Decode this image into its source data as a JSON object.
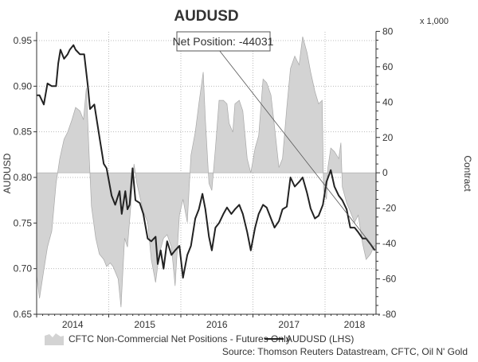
{
  "chart_data": {
    "type": "area+line",
    "title": "AUDUSD",
    "ylabel_left": "AUDUSD",
    "ylabel_right": "Contract",
    "right_axis_unit": "x 1,000",
    "ylim_left": [
      0.65,
      0.95
    ],
    "ylim_right": [
      -80,
      80
    ],
    "xlim": [
      2014.0,
      2018.71
    ],
    "left_ticks": [
      "0.65",
      "0.70",
      "0.75",
      "0.80",
      "0.85",
      "0.90",
      "0.95"
    ],
    "right_ticks": [
      "-80",
      "-60",
      "-40",
      "-20",
      "0",
      "20",
      "40",
      "60",
      "80"
    ],
    "x_ticks": [
      "2014",
      "2015",
      "2016",
      "2017",
      "2018"
    ],
    "grid": true,
    "annotation": "Net Position: -44031",
    "legend": {
      "placement": "bottom",
      "items": [
        "CFTC Non-Commercial Net Positions - Futures Only",
        "AUDUSD (LHS)"
      ]
    },
    "source": "Source: Thomson Reuters Datastream, CFTC, Oil N' Gold",
    "colors": {
      "area": "#d3d3d3",
      "area_stroke": "#a8a8a8",
      "line": "#222222"
    },
    "series": [
      {
        "name": "CFTC Non-Commercial Net Positions - Futures Only",
        "axis": "right",
        "type": "area",
        "x": [
          2014.0,
          2014.04,
          2014.1,
          2014.15,
          2014.21,
          2014.27,
          2014.32,
          2014.38,
          2014.43,
          2014.49,
          2014.54,
          2014.6,
          2014.65,
          2014.69,
          2014.73,
          2014.76,
          2014.82,
          2014.87,
          2014.93,
          2014.97,
          2015.02,
          2015.06,
          2015.13,
          2015.17,
          2015.22,
          2015.26,
          2015.3,
          2015.35,
          2015.39,
          2015.44,
          2015.48,
          2015.54,
          2015.59,
          2015.65,
          2015.7,
          2015.76,
          2015.81,
          2015.87,
          2015.92,
          2015.98,
          2016.03,
          2016.09,
          2016.14,
          2016.2,
          2016.25,
          2016.31,
          2016.34,
          2016.39,
          2016.43,
          2016.48,
          2016.53,
          2016.59,
          2016.64,
          2016.67,
          2016.72,
          2016.75,
          2016.81,
          2016.86,
          2016.92,
          2016.97,
          2017.03,
          2017.08,
          2017.14,
          2017.19,
          2017.25,
          2017.3,
          2017.36,
          2017.41,
          2017.47,
          2017.52,
          2017.58,
          2017.64,
          2017.69,
          2017.75,
          2017.8,
          2017.86,
          2017.91,
          2017.96,
          2017.98,
          2018.02,
          2018.04,
          2018.08,
          2018.13,
          2018.19,
          2018.22,
          2018.24,
          2018.3,
          2018.35,
          2018.41,
          2018.46,
          2018.52,
          2018.57,
          2018.63,
          2018.69,
          2018.71
        ],
        "values": [
          -58,
          -71,
          -55,
          -42,
          -33,
          -6,
          8,
          19,
          23,
          30,
          37,
          35,
          30,
          48,
          8,
          -19,
          -37,
          -46,
          -49,
          -53,
          -51,
          -53,
          -60,
          -76,
          -37,
          -42,
          -22,
          5,
          -6,
          -15,
          -22,
          -28,
          -49,
          -62,
          -46,
          -37,
          -35,
          -42,
          -64,
          -24,
          -15,
          -28,
          10,
          23,
          39,
          57,
          30,
          -6,
          -10,
          14,
          41,
          41,
          39,
          28,
          23,
          39,
          41,
          35,
          8,
          0,
          14,
          21,
          53,
          51,
          44,
          26,
          3,
          8,
          37,
          59,
          66,
          61,
          77,
          68,
          57,
          46,
          39,
          41,
          -10,
          -15,
          3,
          14,
          12,
          8,
          17,
          -8,
          -17,
          -22,
          -28,
          -24,
          -40,
          -49,
          -46,
          -41,
          -44
        ]
      },
      {
        "name": "AUDUSD (LHS)",
        "axis": "left",
        "type": "line",
        "x": [
          2014.0,
          2014.04,
          2014.1,
          2014.15,
          2014.21,
          2014.27,
          2014.3,
          2014.33,
          2014.38,
          2014.43,
          2014.46,
          2014.51,
          2014.54,
          2014.6,
          2014.66,
          2014.71,
          2014.74,
          2014.8,
          2014.84,
          2014.88,
          2014.93,
          2014.97,
          2015.04,
          2015.09,
          2015.15,
          2015.18,
          2015.23,
          2015.26,
          2015.29,
          2015.33,
          2015.37,
          2015.43,
          2015.48,
          2015.54,
          2015.59,
          2015.65,
          2015.68,
          2015.72,
          2015.76,
          2015.81,
          2015.87,
          2015.92,
          2015.98,
          2016.03,
          2016.09,
          2016.14,
          2016.2,
          2016.25,
          2016.3,
          2016.34,
          2016.39,
          2016.43,
          2016.48,
          2016.53,
          2016.59,
          2016.64,
          2016.7,
          2016.75,
          2016.81,
          2016.86,
          2016.92,
          2016.97,
          2017.03,
          2017.08,
          2017.14,
          2017.19,
          2017.25,
          2017.3,
          2017.36,
          2017.41,
          2017.47,
          2017.52,
          2017.58,
          2017.64,
          2017.69,
          2017.75,
          2017.8,
          2017.86,
          2017.91,
          2017.97,
          2018.02,
          2018.08,
          2018.13,
          2018.19,
          2018.24,
          2018.3,
          2018.35,
          2018.41,
          2018.46,
          2018.52,
          2018.57,
          2018.63,
          2018.69
        ],
        "values": [
          0.89,
          0.89,
          0.88,
          0.903,
          0.9,
          0.9,
          0.925,
          0.94,
          0.93,
          0.935,
          0.94,
          0.945,
          0.94,
          0.935,
          0.935,
          0.9,
          0.875,
          0.88,
          0.86,
          0.84,
          0.815,
          0.81,
          0.78,
          0.77,
          0.785,
          0.76,
          0.785,
          0.765,
          0.77,
          0.81,
          0.775,
          0.772,
          0.76,
          0.733,
          0.73,
          0.735,
          0.705,
          0.72,
          0.7,
          0.73,
          0.715,
          0.72,
          0.725,
          0.69,
          0.715,
          0.725,
          0.755,
          0.765,
          0.782,
          0.765,
          0.735,
          0.72,
          0.745,
          0.75,
          0.76,
          0.767,
          0.76,
          0.765,
          0.77,
          0.76,
          0.74,
          0.72,
          0.745,
          0.76,
          0.77,
          0.767,
          0.755,
          0.745,
          0.752,
          0.765,
          0.768,
          0.8,
          0.79,
          0.795,
          0.8,
          0.783,
          0.766,
          0.755,
          0.758,
          0.77,
          0.795,
          0.808,
          0.79,
          0.78,
          0.775,
          0.765,
          0.745,
          0.745,
          0.74,
          0.733,
          0.733,
          0.727,
          0.72
        ]
      }
    ]
  }
}
